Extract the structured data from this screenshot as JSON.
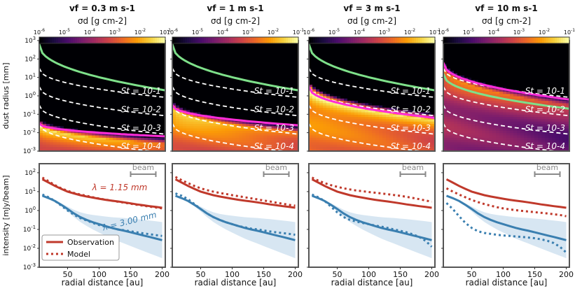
{
  "colors": {
    "observation": "#c0392b",
    "model": "#c0392b",
    "obs_blue": "#3a7fb0",
    "band_blue": "#bcd6ea",
    "st_line": "#ffffff",
    "fit_green": "#7ee08a",
    "fit_magenta": "#ff2cd8",
    "beam": "#8a8a8a",
    "colormap": [
      "#000004",
      "#1b0c41",
      "#4a0c6b",
      "#781c6d",
      "#a52c60",
      "#cf4446",
      "#ed6925",
      "#fb9b06",
      "#f7d13d",
      "#fcffa4"
    ]
  },
  "chart_data": [
    {
      "type": "heatmap",
      "title": "v_f = 0.3 m s^-1",
      "vf_title": "vf = 0.3 m s-1",
      "colorbar": {
        "label": "σd [g cm-2]",
        "ticks": [
          "10-6",
          "10-5",
          "10-4",
          "10-3",
          "10-2",
          "10-1"
        ],
        "range": [
          1e-06,
          0.1
        ]
      },
      "xlabel": "radial distance [au]",
      "ylabel": "dust radius [mm]",
      "ylim": [
        0.001,
        1000
      ],
      "xlim": [
        5,
        205
      ],
      "yticks": [
        "10-3",
        "10-2",
        "10-1",
        "100",
        "101",
        "102",
        "103"
      ],
      "st_labels": [
        "St = 10-1",
        "St = 10-2",
        "St = 10-3",
        "St = 10-4"
      ],
      "st_lines": [
        [
          0.2,
          -0.08
        ],
        [
          -0.8,
          -1.08
        ],
        [
          -1.8,
          -2.08
        ],
        [
          -2.8,
          -3.08
        ]
      ],
      "bright_cutoff": [
        -1.5,
        -2.6
      ],
      "green_line": [
        2.8,
        0.3
      ],
      "magenta_line": [
        -1.5,
        -2.2
      ],
      "bg_level": 0.55
    },
    {
      "type": "heatmap",
      "title": "v_f = 1 m s^-1",
      "vf_title": "vf = 1 m s-1",
      "colorbar": {
        "label": "σd [g cm-2]",
        "ticks": [
          "10-6",
          "10-5",
          "10-4",
          "10-3",
          "10-2",
          "10-1"
        ],
        "range": [
          1e-06,
          0.1
        ]
      },
      "xlabel": "radial distance [au]",
      "ylabel": "",
      "ylim": [
        0.001,
        1000
      ],
      "xlim": [
        5,
        205
      ],
      "st_labels": [
        "St = 10-1",
        "St = 10-2",
        "St = 10-3",
        "St = 10-4"
      ],
      "st_lines": [
        [
          0.2,
          -0.08
        ],
        [
          -0.8,
          -1.08
        ],
        [
          -1.8,
          -2.08
        ],
        [
          -2.8,
          -3.08
        ]
      ],
      "bright_cutoff": [
        -0.5,
        -2.0
      ],
      "green_line": [
        2.8,
        0.3
      ],
      "magenta_line": [
        -0.5,
        -1.6
      ],
      "bg_level": 0.62
    },
    {
      "type": "heatmap",
      "title": "v_f = 3 m s^-1",
      "vf_title": "vf = 3 m s-1",
      "colorbar": {
        "label": "σd [g cm-2]",
        "ticks": [
          "10-6",
          "10-5",
          "10-4",
          "10-3",
          "10-2",
          "10-1"
        ],
        "range": [
          1e-06,
          0.1
        ]
      },
      "xlabel": "radial distance [au]",
      "ylabel": "",
      "ylim": [
        0.001,
        1000
      ],
      "xlim": [
        5,
        205
      ],
      "st_labels": [
        "St = 10-1",
        "St = 10-2",
        "St = 10-3",
        "St = 10-4"
      ],
      "st_lines": [
        [
          0.2,
          -0.08
        ],
        [
          -0.8,
          -1.08
        ],
        [
          -1.8,
          -2.08
        ],
        [
          -2.8,
          -3.08
        ]
      ],
      "bright_cutoff": [
        0.6,
        -1.3
      ],
      "green_line": [
        2.8,
        0.3
      ],
      "magenta_line": [
        0.5,
        -1.2
      ],
      "bg_level": 0.7
    },
    {
      "type": "heatmap",
      "title": "v_f = 10 m s^-1",
      "vf_title": "vf = 10 m s-1",
      "colorbar": {
        "label": "σd [g cm-2]",
        "ticks": [
          "10-6",
          "10-5",
          "10-4",
          "10-3",
          "10-2",
          "10-1"
        ],
        "range": [
          1e-06,
          0.1
        ]
      },
      "xlabel": "radial distance [au]",
      "ylabel": "",
      "ylim": [
        0.001,
        1000
      ],
      "xlim": [
        5,
        205
      ],
      "st_labels": [
        "St = 10-1",
        "St = 10-2",
        "St = 10-3",
        "St = 10-4"
      ],
      "st_lines": [
        [
          0.2,
          -0.08
        ],
        [
          -0.8,
          -1.08
        ],
        [
          -1.8,
          -2.08
        ],
        [
          -2.8,
          -3.08
        ]
      ],
      "bright_cutoff": [
        1.7,
        -0.5
      ],
      "green_line": [
        1.2,
        -0.7
      ],
      "magenta_line": [
        1.8,
        -0.2
      ],
      "bg_level": 0.42
    },
    {
      "type": "line",
      "xlabel": "radial distance [au]",
      "ylabel": "intensity [mJy/beam]",
      "xlim": [
        5,
        205
      ],
      "ylim": [
        0.001,
        300
      ],
      "xticks": [
        50,
        100,
        150,
        200
      ],
      "yticks": [
        "10-3",
        "10-2",
        "10-1",
        "100",
        "101",
        "102"
      ],
      "beam_label": "beam",
      "band_labels": [
        "λ = 1.15 mm",
        "λ = 3.00 mm"
      ],
      "legend": [
        "Observation",
        "Model"
      ],
      "x": [
        10,
        20,
        30,
        40,
        50,
        60,
        70,
        80,
        90,
        100,
        110,
        120,
        130,
        140,
        150,
        160,
        170,
        180,
        190,
        200
      ],
      "series": [
        {
          "name": "Observation 1.15 mm",
          "values": [
            45,
            30,
            20,
            14,
            10,
            8,
            6.5,
            5.5,
            4.8,
            4.2,
            3.7,
            3.3,
            3.0,
            2.7,
            2.4,
            2.1,
            1.9,
            1.7,
            1.55,
            1.4
          ]
        },
        {
          "name": "Model 1.15 mm",
          "values": [
            55,
            35,
            22,
            15,
            11,
            8.5,
            7,
            6,
            5,
            4.3,
            3.8,
            3.3,
            2.9,
            2.6,
            2.3,
            2.0,
            1.8,
            1.6,
            1.45,
            1.3
          ]
        },
        {
          "name": "Observation 3.00 mm",
          "values": [
            6,
            4.5,
            3.2,
            2.0,
            1.2,
            0.7,
            0.45,
            0.32,
            0.24,
            0.19,
            0.15,
            0.12,
            0.1,
            0.085,
            0.07,
            0.058,
            0.048,
            0.04,
            0.033,
            0.027
          ]
        },
        {
          "name": "Model 3.00 mm",
          "values": [
            7,
            5,
            3.2,
            1.8,
            1.0,
            0.6,
            0.4,
            0.3,
            0.22,
            0.17,
            0.14,
            0.12,
            0.1,
            0.09,
            0.08,
            0.07,
            0.062,
            0.056,
            0.05,
            0.045
          ]
        }
      ]
    },
    {
      "type": "line",
      "xlabel": "radial distance [au]",
      "ylabel": "",
      "xlim": [
        5,
        205
      ],
      "ylim": [
        0.001,
        300
      ],
      "xticks": [
        50,
        100,
        150,
        200
      ],
      "beam_label": "beam",
      "x": [
        10,
        20,
        30,
        40,
        50,
        60,
        70,
        80,
        90,
        100,
        110,
        120,
        130,
        140,
        150,
        160,
        170,
        180,
        190,
        200
      ],
      "series": [
        {
          "name": "Observation 1.15 mm",
          "values": [
            45,
            30,
            20,
            14,
            10,
            8,
            6.5,
            5.5,
            4.8,
            4.2,
            3.7,
            3.3,
            3.0,
            2.7,
            2.4,
            2.1,
            1.9,
            1.7,
            1.55,
            1.4
          ]
        },
        {
          "name": "Model 1.15 mm",
          "values": [
            60,
            40,
            28,
            20,
            15,
            12,
            10,
            8.5,
            7.5,
            6.5,
            5.7,
            5,
            4.4,
            3.9,
            3.4,
            3.0,
            2.6,
            2.3,
            2.0,
            1.8
          ]
        },
        {
          "name": "Observation 3.00 mm",
          "values": [
            6,
            4.5,
            3.2,
            2.0,
            1.2,
            0.7,
            0.45,
            0.32,
            0.24,
            0.19,
            0.15,
            0.12,
            0.1,
            0.085,
            0.07,
            0.058,
            0.048,
            0.04,
            0.033,
            0.027
          ]
        },
        {
          "name": "Model 3.00 mm",
          "values": [
            8,
            6,
            4,
            2.2,
            1.2,
            0.7,
            0.45,
            0.32,
            0.24,
            0.19,
            0.15,
            0.13,
            0.11,
            0.1,
            0.088,
            0.078,
            0.07,
            0.064,
            0.058,
            0.052
          ]
        }
      ]
    },
    {
      "type": "line",
      "xlabel": "radial distance [au]",
      "ylabel": "",
      "xlim": [
        5,
        205
      ],
      "ylim": [
        0.001,
        300
      ],
      "xticks": [
        50,
        100,
        150,
        200
      ],
      "beam_label": "beam",
      "x": [
        10,
        20,
        30,
        40,
        50,
        60,
        70,
        80,
        90,
        100,
        110,
        120,
        130,
        140,
        150,
        160,
        170,
        180,
        190,
        200
      ],
      "series": [
        {
          "name": "Observation 1.15 mm",
          "values": [
            45,
            30,
            20,
            14,
            10,
            8,
            6.5,
            5.5,
            4.8,
            4.2,
            3.7,
            3.3,
            3.0,
            2.7,
            2.4,
            2.1,
            1.9,
            1.7,
            1.55,
            1.4
          ]
        },
        {
          "name": "Model 1.15 mm",
          "values": [
            55,
            38,
            28,
            22,
            18,
            15,
            13,
            11.5,
            10.5,
            9.5,
            8.7,
            8,
            7.3,
            6.6,
            6.0,
            5.3,
            4.6,
            4.0,
            3.4,
            2.9
          ]
        },
        {
          "name": "Observation 3.00 mm",
          "values": [
            6,
            4.5,
            3.2,
            2.0,
            1.2,
            0.7,
            0.45,
            0.32,
            0.24,
            0.19,
            0.15,
            0.12,
            0.1,
            0.085,
            0.07,
            0.058,
            0.048,
            0.04,
            0.033,
            0.027
          ]
        },
        {
          "name": "Model 3.00 mm",
          "values": [
            7,
            5,
            3.2,
            1.6,
            0.8,
            0.45,
            0.32,
            0.26,
            0.22,
            0.19,
            0.16,
            0.14,
            0.12,
            0.1,
            0.085,
            0.07,
            0.055,
            0.04,
            0.025,
            0.012
          ]
        }
      ]
    },
    {
      "type": "line",
      "xlabel": "radial distance [au]",
      "ylabel": "",
      "xlim": [
        5,
        205
      ],
      "ylim": [
        0.001,
        300
      ],
      "xticks": [
        50,
        100,
        150,
        200
      ],
      "beam_label": "beam",
      "x": [
        10,
        20,
        30,
        40,
        50,
        60,
        70,
        80,
        90,
        100,
        110,
        120,
        130,
        140,
        150,
        160,
        170,
        180,
        190,
        200
      ],
      "series": [
        {
          "name": "Observation 1.15 mm",
          "values": [
            45,
            30,
            20,
            14,
            10,
            8,
            6.5,
            5.5,
            4.8,
            4.2,
            3.7,
            3.3,
            3.0,
            2.7,
            2.4,
            2.1,
            1.9,
            1.7,
            1.55,
            1.4
          ]
        },
        {
          "name": "Model 1.15 mm",
          "values": [
            15,
            10,
            7,
            5,
            3.6,
            2.8,
            2.2,
            1.8,
            1.5,
            1.3,
            1.15,
            1.05,
            0.95,
            0.88,
            0.82,
            0.76,
            0.7,
            0.64,
            0.58,
            0.5
          ]
        },
        {
          "name": "Observation 3.00 mm",
          "values": [
            6,
            4.5,
            3.2,
            2.0,
            1.2,
            0.7,
            0.45,
            0.32,
            0.24,
            0.19,
            0.15,
            0.12,
            0.1,
            0.085,
            0.07,
            0.058,
            0.048,
            0.04,
            0.033,
            0.027
          ]
        },
        {
          "name": "Model 3.00 mm",
          "values": [
            2.5,
            1.2,
            0.5,
            0.22,
            0.12,
            0.08,
            0.065,
            0.058,
            0.052,
            0.048,
            0.045,
            0.042,
            0.04,
            0.037,
            0.034,
            0.03,
            0.025,
            0.019,
            0.012,
            0.006
          ]
        }
      ]
    }
  ]
}
